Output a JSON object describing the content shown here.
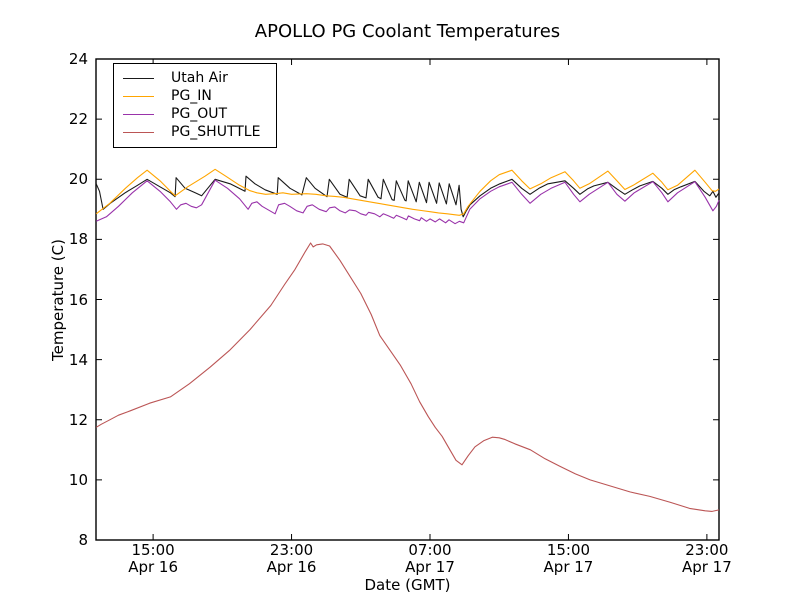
{
  "chart_data": {
    "type": "line",
    "title": "APOLLO PG Coolant Temperatures",
    "xlabel": "Date (GMT)",
    "ylabel": "Temperature (C)",
    "x_unit": "hours since Apr 16 00:00 GMT",
    "xlim": [
      11.7,
      47.7
    ],
    "ylim": [
      8,
      24
    ],
    "grid": false,
    "legend_position": "upper left",
    "y_ticks": [
      8,
      10,
      12,
      14,
      16,
      18,
      20,
      22,
      24
    ],
    "x_ticks": [
      {
        "t": 15,
        "time": "15:00",
        "date": "Apr 16"
      },
      {
        "t": 23,
        "time": "23:00",
        "date": "Apr 16"
      },
      {
        "t": 31,
        "time": "07:00",
        "date": "Apr 17"
      },
      {
        "t": 39,
        "time": "15:00",
        "date": "Apr 17"
      },
      {
        "t": 47,
        "time": "23:00",
        "date": "Apr 17"
      }
    ],
    "series": [
      {
        "name": "Utah Air",
        "color": "#1a1a1a",
        "points": [
          [
            11.71,
            19.85
          ],
          [
            11.9,
            19.6
          ],
          [
            12.11,
            19.0
          ],
          [
            12.52,
            19.2
          ],
          [
            13.38,
            19.55
          ],
          [
            14.1,
            19.8
          ],
          [
            14.65,
            20.0
          ],
          [
            15.4,
            19.75
          ],
          [
            16.0,
            19.55
          ],
          [
            16.27,
            19.42
          ],
          [
            16.33,
            20.05
          ],
          [
            16.85,
            19.7
          ],
          [
            17.43,
            19.55
          ],
          [
            17.8,
            19.45
          ],
          [
            18.58,
            20.0
          ],
          [
            19.45,
            19.85
          ],
          [
            20.31,
            19.6
          ],
          [
            20.37,
            20.1
          ],
          [
            20.89,
            19.85
          ],
          [
            21.47,
            19.65
          ],
          [
            22.17,
            19.5
          ],
          [
            22.23,
            20.05
          ],
          [
            22.91,
            19.7
          ],
          [
            23.6,
            19.48
          ],
          [
            23.85,
            20.05
          ],
          [
            24.36,
            19.7
          ],
          [
            25.05,
            19.42
          ],
          [
            25.18,
            20.0
          ],
          [
            25.8,
            19.5
          ],
          [
            26.21,
            19.4
          ],
          [
            26.33,
            20.0
          ],
          [
            26.96,
            19.45
          ],
          [
            27.3,
            19.38
          ],
          [
            27.43,
            20.0
          ],
          [
            28.0,
            19.4
          ],
          [
            28.17,
            19.35
          ],
          [
            28.3,
            20.0
          ],
          [
            28.81,
            19.32
          ],
          [
            28.93,
            19.3
          ],
          [
            29.05,
            19.95
          ],
          [
            29.55,
            19.3
          ],
          [
            29.62,
            19.28
          ],
          [
            29.74,
            19.95
          ],
          [
            30.2,
            19.25
          ],
          [
            30.38,
            19.9
          ],
          [
            30.8,
            19.22
          ],
          [
            30.95,
            19.9
          ],
          [
            31.38,
            19.2
          ],
          [
            31.53,
            19.88
          ],
          [
            31.95,
            19.18
          ],
          [
            32.11,
            19.85
          ],
          [
            32.5,
            19.15
          ],
          [
            32.68,
            19.8
          ],
          [
            32.8,
            19.0
          ],
          [
            32.92,
            18.75
          ],
          [
            33.1,
            18.95
          ],
          [
            33.31,
            19.15
          ],
          [
            33.89,
            19.45
          ],
          [
            34.5,
            19.7
          ],
          [
            35.04,
            19.85
          ],
          [
            35.74,
            20.0
          ],
          [
            36.3,
            19.7
          ],
          [
            36.78,
            19.5
          ],
          [
            37.3,
            19.7
          ],
          [
            37.82,
            19.85
          ],
          [
            38.8,
            19.95
          ],
          [
            39.3,
            19.7
          ],
          [
            39.66,
            19.5
          ],
          [
            40.1,
            19.68
          ],
          [
            40.47,
            19.78
          ],
          [
            41.28,
            19.9
          ],
          [
            41.8,
            19.68
          ],
          [
            42.26,
            19.5
          ],
          [
            42.7,
            19.65
          ],
          [
            43.13,
            19.78
          ],
          [
            43.88,
            19.93
          ],
          [
            44.4,
            19.7
          ],
          [
            44.75,
            19.5
          ],
          [
            45.1,
            19.65
          ],
          [
            45.5,
            19.75
          ],
          [
            46.31,
            19.93
          ],
          [
            46.83,
            19.6
          ],
          [
            47.17,
            19.45
          ],
          [
            47.35,
            19.6
          ],
          [
            47.52,
            19.4
          ],
          [
            47.7,
            19.55
          ]
        ]
      },
      {
        "name": "PG_IN",
        "color": "#ffa500",
        "points": [
          [
            11.71,
            18.85
          ],
          [
            12.5,
            19.2
          ],
          [
            13.4,
            19.7
          ],
          [
            14.1,
            20.05
          ],
          [
            14.65,
            20.3
          ],
          [
            15.4,
            19.95
          ],
          [
            16.0,
            19.6
          ],
          [
            16.27,
            19.45
          ],
          [
            17.0,
            19.75
          ],
          [
            18.0,
            20.1
          ],
          [
            18.58,
            20.33
          ],
          [
            19.2,
            20.1
          ],
          [
            20.0,
            19.8
          ],
          [
            20.6,
            19.62
          ],
          [
            21.0,
            19.55
          ],
          [
            21.5,
            19.5
          ],
          [
            22.2,
            19.53
          ],
          [
            22.5,
            19.55
          ],
          [
            23.0,
            19.5
          ],
          [
            23.85,
            19.52
          ],
          [
            24.4,
            19.5
          ],
          [
            25.0,
            19.45
          ],
          [
            25.5,
            19.43
          ],
          [
            26.0,
            19.4
          ],
          [
            26.5,
            19.35
          ],
          [
            27.0,
            19.3
          ],
          [
            27.5,
            19.25
          ],
          [
            28.0,
            19.2
          ],
          [
            28.5,
            19.15
          ],
          [
            29.0,
            19.1
          ],
          [
            29.5,
            19.05
          ],
          [
            30.0,
            19.0
          ],
          [
            30.5,
            18.96
          ],
          [
            31.0,
            18.92
          ],
          [
            31.5,
            18.88
          ],
          [
            32.0,
            18.85
          ],
          [
            32.4,
            18.82
          ],
          [
            32.7,
            18.8
          ],
          [
            32.95,
            18.85
          ],
          [
            33.2,
            19.1
          ],
          [
            33.89,
            19.6
          ],
          [
            34.5,
            19.95
          ],
          [
            35.0,
            20.15
          ],
          [
            35.74,
            20.3
          ],
          [
            36.3,
            19.95
          ],
          [
            36.78,
            19.68
          ],
          [
            37.4,
            19.85
          ],
          [
            38.0,
            20.05
          ],
          [
            38.8,
            20.25
          ],
          [
            39.3,
            19.95
          ],
          [
            39.66,
            19.7
          ],
          [
            40.2,
            19.85
          ],
          [
            41.28,
            20.27
          ],
          [
            41.8,
            19.95
          ],
          [
            42.26,
            19.66
          ],
          [
            42.8,
            19.82
          ],
          [
            43.88,
            20.2
          ],
          [
            44.4,
            19.9
          ],
          [
            44.75,
            19.65
          ],
          [
            45.3,
            19.8
          ],
          [
            46.31,
            20.3
          ],
          [
            46.9,
            19.9
          ],
          [
            47.3,
            19.62
          ],
          [
            47.5,
            19.6
          ],
          [
            47.7,
            19.68
          ]
        ]
      },
      {
        "name": "PG_OUT",
        "color": "#9933aa",
        "points": [
          [
            11.71,
            18.6
          ],
          [
            12.3,
            18.75
          ],
          [
            13.0,
            19.1
          ],
          [
            13.8,
            19.55
          ],
          [
            14.65,
            19.95
          ],
          [
            15.4,
            19.6
          ],
          [
            16.0,
            19.25
          ],
          [
            16.35,
            19.0
          ],
          [
            16.6,
            19.15
          ],
          [
            16.9,
            19.2
          ],
          [
            17.2,
            19.1
          ],
          [
            17.5,
            19.05
          ],
          [
            17.8,
            19.15
          ],
          [
            18.58,
            19.97
          ],
          [
            19.3,
            19.7
          ],
          [
            20.0,
            19.35
          ],
          [
            20.49,
            19.0
          ],
          [
            20.7,
            19.2
          ],
          [
            21.0,
            19.25
          ],
          [
            21.3,
            19.1
          ],
          [
            21.6,
            19.0
          ],
          [
            22.05,
            18.85
          ],
          [
            22.25,
            19.15
          ],
          [
            22.6,
            19.2
          ],
          [
            22.9,
            19.1
          ],
          [
            23.3,
            18.95
          ],
          [
            23.66,
            18.88
          ],
          [
            23.9,
            19.1
          ],
          [
            24.2,
            19.15
          ],
          [
            24.6,
            19.0
          ],
          [
            25.0,
            18.92
          ],
          [
            25.2,
            19.05
          ],
          [
            25.5,
            19.08
          ],
          [
            25.8,
            18.95
          ],
          [
            26.1,
            18.88
          ],
          [
            26.35,
            18.98
          ],
          [
            26.7,
            18.95
          ],
          [
            27.0,
            18.85
          ],
          [
            27.3,
            18.8
          ],
          [
            27.45,
            18.9
          ],
          [
            27.8,
            18.85
          ],
          [
            28.1,
            18.75
          ],
          [
            28.3,
            18.85
          ],
          [
            28.6,
            18.78
          ],
          [
            28.9,
            18.7
          ],
          [
            29.05,
            18.8
          ],
          [
            29.4,
            18.72
          ],
          [
            29.65,
            18.65
          ],
          [
            29.75,
            18.78
          ],
          [
            30.1,
            18.68
          ],
          [
            30.4,
            18.62
          ],
          [
            30.5,
            18.72
          ],
          [
            30.8,
            18.6
          ],
          [
            31.0,
            18.68
          ],
          [
            31.3,
            18.58
          ],
          [
            31.55,
            18.68
          ],
          [
            31.9,
            18.55
          ],
          [
            32.1,
            18.65
          ],
          [
            32.45,
            18.52
          ],
          [
            32.7,
            18.6
          ],
          [
            32.95,
            18.55
          ],
          [
            33.3,
            19.0
          ],
          [
            33.89,
            19.35
          ],
          [
            34.5,
            19.6
          ],
          [
            35.0,
            19.75
          ],
          [
            35.74,
            19.9
          ],
          [
            36.3,
            19.5
          ],
          [
            36.78,
            19.2
          ],
          [
            37.4,
            19.5
          ],
          [
            38.0,
            19.7
          ],
          [
            38.8,
            19.9
          ],
          [
            39.3,
            19.5
          ],
          [
            39.66,
            19.25
          ],
          [
            40.2,
            19.5
          ],
          [
            41.28,
            19.9
          ],
          [
            41.8,
            19.5
          ],
          [
            42.26,
            19.27
          ],
          [
            42.8,
            19.55
          ],
          [
            43.88,
            19.92
          ],
          [
            44.4,
            19.55
          ],
          [
            44.75,
            19.25
          ],
          [
            45.3,
            19.55
          ],
          [
            46.31,
            19.92
          ],
          [
            46.9,
            19.4
          ],
          [
            47.35,
            18.95
          ],
          [
            47.55,
            19.1
          ],
          [
            47.7,
            19.3
          ]
        ]
      },
      {
        "name": "PG_SHUTTLE",
        "color": "#bb5555",
        "points": [
          [
            11.71,
            11.75
          ],
          [
            12.0,
            11.85
          ],
          [
            12.5,
            12.0
          ],
          [
            13.0,
            12.15
          ],
          [
            13.7,
            12.3
          ],
          [
            14.8,
            12.55
          ],
          [
            16.0,
            12.76
          ],
          [
            17.1,
            13.2
          ],
          [
            18.3,
            13.75
          ],
          [
            19.4,
            14.3
          ],
          [
            20.6,
            15.0
          ],
          [
            21.8,
            15.8
          ],
          [
            22.6,
            16.5
          ],
          [
            23.2,
            17.0
          ],
          [
            23.8,
            17.6
          ],
          [
            24.1,
            17.88
          ],
          [
            24.25,
            17.75
          ],
          [
            24.45,
            17.82
          ],
          [
            24.8,
            17.85
          ],
          [
            25.2,
            17.78
          ],
          [
            25.8,
            17.3
          ],
          [
            27.0,
            16.2
          ],
          [
            27.6,
            15.5
          ],
          [
            28.1,
            14.8
          ],
          [
            28.7,
            14.3
          ],
          [
            29.3,
            13.8
          ],
          [
            29.9,
            13.2
          ],
          [
            30.4,
            12.6
          ],
          [
            30.9,
            12.1
          ],
          [
            31.3,
            11.75
          ],
          [
            31.7,
            11.45
          ],
          [
            32.15,
            11.0
          ],
          [
            32.5,
            10.65
          ],
          [
            32.85,
            10.5
          ],
          [
            33.2,
            10.8
          ],
          [
            33.6,
            11.1
          ],
          [
            34.1,
            11.3
          ],
          [
            34.6,
            11.42
          ],
          [
            35.0,
            11.4
          ],
          [
            35.3,
            11.35
          ],
          [
            35.9,
            11.2
          ],
          [
            36.8,
            11.0
          ],
          [
            37.65,
            10.7
          ],
          [
            38.5,
            10.45
          ],
          [
            39.4,
            10.2
          ],
          [
            40.25,
            10.0
          ],
          [
            41.4,
            9.8
          ],
          [
            42.55,
            9.6
          ],
          [
            43.7,
            9.45
          ],
          [
            44.9,
            9.25
          ],
          [
            46.0,
            9.05
          ],
          [
            46.9,
            8.97
          ],
          [
            47.3,
            8.95
          ],
          [
            47.7,
            9.0
          ]
        ]
      }
    ]
  }
}
